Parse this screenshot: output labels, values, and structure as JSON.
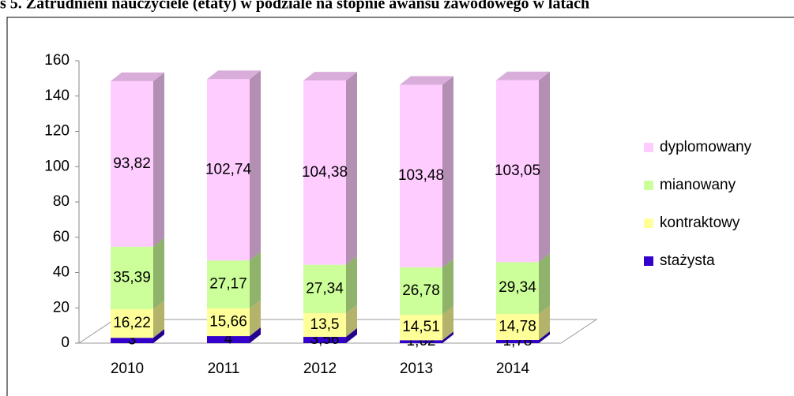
{
  "chart_data": {
    "type": "bar3d_stacked",
    "title": "s 5. Zatrudnieni nauczyciele (etaty) w podziale na stopnie awansu zawodowego w latach",
    "categories": [
      "2010",
      "2011",
      "2012",
      "2013",
      "2014"
    ],
    "series": [
      {
        "name": "stażysta",
        "color": "#3300cc",
        "values": [
          3,
          4,
          3.56,
          1.62,
          1.78
        ],
        "value_labels": [
          "3",
          "4",
          "3,56",
          "1,62",
          "1,78"
        ]
      },
      {
        "name": "kontraktowy",
        "color": "#ffff99",
        "values": [
          16.22,
          15.66,
          13.5,
          14.51,
          14.78
        ],
        "value_labels": [
          "16,22",
          "15,66",
          "13,5",
          "14,51",
          "14,78"
        ]
      },
      {
        "name": "mianowany",
        "color": "#ccff99",
        "values": [
          35.39,
          27.17,
          27.34,
          26.78,
          29.34
        ],
        "value_labels": [
          "35,39",
          "27,17",
          "27,34",
          "26,78",
          "29,34"
        ]
      },
      {
        "name": "dyplomowany",
        "color": "#ffccff",
        "values": [
          93.82,
          102.74,
          104.38,
          103.48,
          103.05
        ],
        "value_labels": [
          "93,82",
          "102,74",
          "104,38",
          "103,48",
          "103,05"
        ]
      }
    ],
    "ylim": [
      0,
      160
    ],
    "yticks": [
      0,
      20,
      40,
      60,
      80,
      100,
      120,
      140,
      160
    ]
  }
}
